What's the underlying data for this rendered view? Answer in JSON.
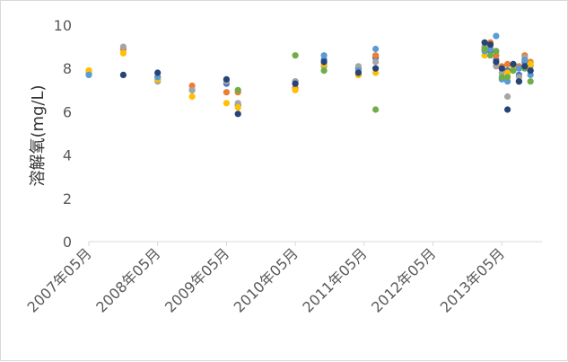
{
  "chart_data": {
    "type": "scatter",
    "title": "",
    "xlabel": "",
    "ylabel": "溶解氧(mg/L)",
    "x_range": [
      "2007-05",
      "2013-12"
    ],
    "ylim": [
      0,
      10
    ],
    "y_ticks": [
      "0",
      "2",
      "4",
      "6",
      "8",
      "10"
    ],
    "x_ticks": [
      {
        "date": "2007-05",
        "label": "2007年05月"
      },
      {
        "date": "2008-05",
        "label": "2008年05月"
      },
      {
        "date": "2009-05",
        "label": "2009年05月"
      },
      {
        "date": "2010-05",
        "label": "2010年05月"
      },
      {
        "date": "2011-05",
        "label": "2011年05月"
      },
      {
        "date": "2012-05",
        "label": "2012年05月"
      },
      {
        "date": "2013-05",
        "label": "2013年05月"
      }
    ],
    "grid": false,
    "legend": "none",
    "series": [
      {
        "color": "#4472c4",
        "points": [
          [
            "2007-05",
            7.8
          ],
          [
            "2007-11",
            8.9
          ],
          [
            "2008-05",
            7.6
          ],
          [
            "2008-11",
            7.0
          ],
          [
            "2009-05",
            7.3
          ],
          [
            "2009-07",
            6.3
          ],
          [
            "2010-05",
            7.4
          ],
          [
            "2010-10",
            8.4
          ],
          [
            "2011-04",
            8.0
          ],
          [
            "2011-07",
            8.5
          ],
          [
            "2013-02",
            8.9
          ],
          [
            "2013-03",
            8.8
          ],
          [
            "2013-04",
            8.4
          ],
          [
            "2013-05",
            8.0
          ],
          [
            "2013-06",
            7.9
          ],
          [
            "2013-07",
            8.1
          ],
          [
            "2013-08",
            7.7
          ],
          [
            "2013-09",
            8.3
          ],
          [
            "2013-10",
            7.9
          ]
        ]
      },
      {
        "color": "#ed7d31",
        "points": [
          [
            "2007-05",
            7.9
          ],
          [
            "2007-11",
            8.9
          ],
          [
            "2008-05",
            7.5
          ],
          [
            "2008-11",
            7.2
          ],
          [
            "2009-05",
            6.9
          ],
          [
            "2009-07",
            6.9
          ],
          [
            "2010-05",
            7.1
          ],
          [
            "2010-10",
            8.1
          ],
          [
            "2011-04",
            7.7
          ],
          [
            "2011-07",
            8.6
          ],
          [
            "2013-02",
            9.0
          ],
          [
            "2013-03",
            9.2
          ],
          [
            "2013-04",
            8.6
          ],
          [
            "2013-05",
            8.1
          ],
          [
            "2013-06",
            8.2
          ],
          [
            "2013-07",
            8.1
          ],
          [
            "2013-08",
            8.1
          ],
          [
            "2013-09",
            8.6
          ],
          [
            "2013-10",
            8.3
          ]
        ]
      },
      {
        "color": "#a5a5a5",
        "points": [
          [
            "2007-05",
            7.8
          ],
          [
            "2007-11",
            9.0
          ],
          [
            "2008-05",
            7.4
          ],
          [
            "2008-11",
            7.0
          ],
          [
            "2009-05",
            7.4
          ],
          [
            "2009-07",
            6.4
          ],
          [
            "2010-05",
            7.4
          ],
          [
            "2010-10",
            8.1
          ],
          [
            "2011-04",
            8.1
          ],
          [
            "2011-07",
            8.3
          ],
          [
            "2013-02",
            9.0
          ],
          [
            "2013-03",
            8.9
          ],
          [
            "2013-04",
            8.1
          ],
          [
            "2013-05",
            7.8
          ],
          [
            "2013-06",
            6.7
          ],
          [
            "2013-07",
            8.1
          ],
          [
            "2013-08",
            7.6
          ],
          [
            "2013-09",
            8.5
          ],
          [
            "2013-10",
            8.1
          ]
        ]
      },
      {
        "color": "#ffc000",
        "points": [
          [
            "2007-05",
            7.9
          ],
          [
            "2007-11",
            8.7
          ],
          [
            "2008-05",
            7.5
          ],
          [
            "2008-11",
            6.7
          ],
          [
            "2009-05",
            6.4
          ],
          [
            "2009-07",
            6.2
          ],
          [
            "2010-05",
            7.0
          ],
          [
            "2010-10",
            8.2
          ],
          [
            "2011-04",
            7.7
          ],
          [
            "2011-07",
            7.8
          ],
          [
            "2013-02",
            8.6
          ],
          [
            "2013-03",
            9.0
          ],
          [
            "2013-04",
            8.3
          ],
          [
            "2013-05",
            8.0
          ],
          [
            "2013-06",
            7.8
          ],
          [
            "2013-07",
            8.0
          ],
          [
            "2013-08",
            7.4
          ],
          [
            "2013-09",
            8.4
          ],
          [
            "2013-10",
            8.2
          ]
        ]
      },
      {
        "color": "#5b9bd5",
        "points": [
          [
            "2007-05",
            7.7
          ],
          [
            "2008-05",
            7.6
          ],
          [
            "2010-05",
            7.3
          ],
          [
            "2010-10",
            8.6
          ],
          [
            "2011-04",
            7.9
          ],
          [
            "2011-07",
            8.9
          ],
          [
            "2013-02",
            8.8
          ],
          [
            "2013-03",
            8.9
          ],
          [
            "2013-04",
            9.5
          ],
          [
            "2013-05",
            7.5
          ],
          [
            "2013-06",
            7.4
          ],
          [
            "2013-07",
            8.2
          ],
          [
            "2013-08",
            8.0
          ],
          [
            "2013-09",
            8.4
          ],
          [
            "2013-10",
            7.7
          ]
        ]
      },
      {
        "color": "#70ad47",
        "points": [
          [
            "2009-07",
            7.0
          ],
          [
            "2010-05",
            8.6
          ],
          [
            "2010-10",
            7.9
          ],
          [
            "2011-04",
            7.8
          ],
          [
            "2011-07",
            6.1
          ],
          [
            "2013-02",
            8.9
          ],
          [
            "2013-03",
            8.6
          ],
          [
            "2013-04",
            8.8
          ],
          [
            "2013-05",
            7.6
          ],
          [
            "2013-06",
            7.6
          ],
          [
            "2013-07",
            7.9
          ],
          [
            "2013-08",
            7.4
          ],
          [
            "2013-09",
            8.0
          ],
          [
            "2013-10",
            7.4
          ]
        ]
      },
      {
        "color": "#264478",
        "points": [
          [
            "2007-11",
            7.7
          ],
          [
            "2008-05",
            7.8
          ],
          [
            "2009-05",
            7.5
          ],
          [
            "2009-07",
            5.9
          ],
          [
            "2010-05",
            7.3
          ],
          [
            "2010-10",
            8.3
          ],
          [
            "2011-04",
            7.8
          ],
          [
            "2011-07",
            8.0
          ],
          [
            "2013-02",
            9.2
          ],
          [
            "2013-03",
            9.1
          ],
          [
            "2013-04",
            8.3
          ],
          [
            "2013-05",
            8.0
          ],
          [
            "2013-06",
            6.1
          ],
          [
            "2013-07",
            8.2
          ],
          [
            "2013-08",
            7.4
          ],
          [
            "2013-09",
            8.1
          ],
          [
            "2013-10",
            7.9
          ]
        ]
      }
    ]
  }
}
